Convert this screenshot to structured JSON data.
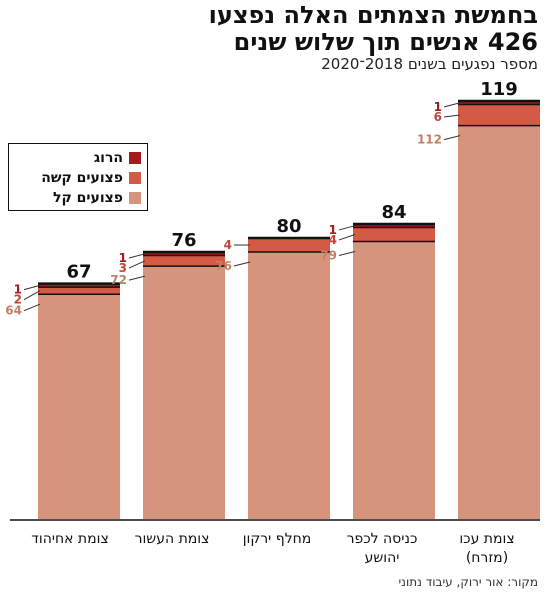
{
  "title_line1": "בחמשת הצמתים האלה נפצעו",
  "title_line2": "426 אנשים תוך שלוש שנים",
  "subtitle": "מספר נפגעים בשנים 2018־2020",
  "source": "מקור: אור ירוק, עיבוד נתוני",
  "colors": {
    "killed": "#a31b1b",
    "serious": "#d35a45",
    "light": "#d6947d",
    "outline": "#111111"
  },
  "legend": [
    {
      "label": "הרוג",
      "color": "#a31b1b"
    },
    {
      "label": "פצועים קשה",
      "color": "#d35a45"
    },
    {
      "label": "פצועים קל",
      "color": "#d6947d"
    }
  ],
  "chart_data": {
    "type": "bar",
    "stacked": true,
    "categories": [
      "צומת אחיהוד",
      "צומת העשור",
      "מחלף ירקון",
      "כניסה לכפר יהושע",
      "צומת עכו (מזרח)"
    ],
    "category_lines": [
      [
        "צומת אחיהוד"
      ],
      [
        "צומת העשור"
      ],
      [
        "מחלף ירקון"
      ],
      [
        "כניסה לכפר",
        "יהושע"
      ],
      [
        "צומת עכו",
        "(מזרח)"
      ]
    ],
    "series": [
      {
        "name": "פצועים קל",
        "values": [
          64,
          72,
          76,
          79,
          112
        ]
      },
      {
        "name": "פצועים קשה",
        "values": [
          2,
          3,
          4,
          4,
          6
        ]
      },
      {
        "name": "הרוג",
        "values": [
          1,
          1,
          0,
          1,
          1
        ]
      }
    ],
    "totals": [
      67,
      76,
      80,
      84,
      119
    ],
    "ylim": [
      0,
      119
    ],
    "grid": false,
    "legend_position": "top-left"
  }
}
